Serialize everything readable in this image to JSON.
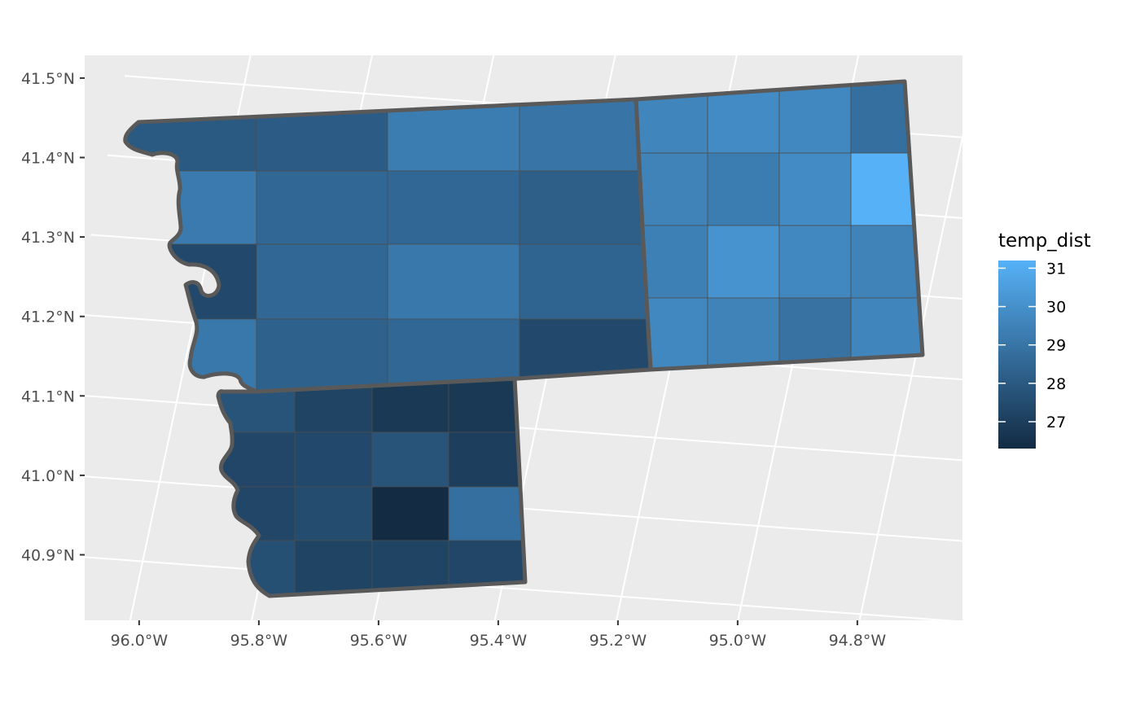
{
  "map": {
    "type": "choropleth",
    "x_axis": {
      "ticks": [
        {
          "value": -96.0,
          "label": "96.0°W"
        },
        {
          "value": -95.8,
          "label": "95.8°W"
        },
        {
          "value": -95.6,
          "label": "95.6°W"
        },
        {
          "value": -95.4,
          "label": "95.4°W"
        },
        {
          "value": -95.2,
          "label": "95.2°W"
        },
        {
          "value": -95.0,
          "label": "95.0°W"
        },
        {
          "value": -94.8,
          "label": "94.8°W"
        }
      ]
    },
    "y_axis": {
      "ticks": [
        {
          "value": 41.5,
          "label": "41.5°N"
        },
        {
          "value": 41.4,
          "label": "41.4°N"
        },
        {
          "value": 41.3,
          "label": "41.3°N"
        },
        {
          "value": 41.2,
          "label": "41.2°N"
        },
        {
          "value": 41.1,
          "label": "41.1°N"
        },
        {
          "value": 41.0,
          "label": "41.0°N"
        },
        {
          "value": 40.9,
          "label": "40.9°N"
        }
      ]
    },
    "legend": {
      "title": "temp_dist",
      "min": 26.3,
      "max": 31.2,
      "breaks": [
        {
          "value": 31,
          "label": "31"
        },
        {
          "value": 30,
          "label": "30"
        },
        {
          "value": 29,
          "label": "29"
        },
        {
          "value": 28,
          "label": "28"
        },
        {
          "value": 27,
          "label": "27"
        }
      ],
      "color_low": "#132B43",
      "color_high": "#56B1F7",
      "placement": "right"
    },
    "colors": {
      "panel_background": "#EBEBEB",
      "grid": "#FFFFFF",
      "county_border": "#595959",
      "cell_border": "#4D4D4D"
    },
    "cells": {
      "west_county": [
        [
          28.0,
          28.1,
          29.3,
          29.0
        ],
        [
          29.2,
          28.5,
          28.5,
          28.2
        ],
        [
          27.4,
          28.5,
          29.1,
          28.4
        ],
        [
          29.1,
          28.3,
          28.5,
          27.4
        ]
      ],
      "south_county": [
        [
          27.8,
          27.2,
          26.8,
          26.8
        ],
        [
          27.3,
          27.4,
          27.8,
          27.0
        ],
        [
          27.3,
          27.5,
          26.3,
          28.8
        ],
        [
          27.6,
          27.2,
          27.2,
          27.3
        ]
      ],
      "east_county": [
        [
          29.6,
          29.8,
          29.7,
          28.8
        ],
        [
          29.5,
          29.3,
          29.8,
          31.2
        ],
        [
          29.4,
          30.1,
          29.7,
          29.5
        ],
        [
          29.7,
          29.5,
          28.9,
          29.6
        ]
      ]
    }
  }
}
